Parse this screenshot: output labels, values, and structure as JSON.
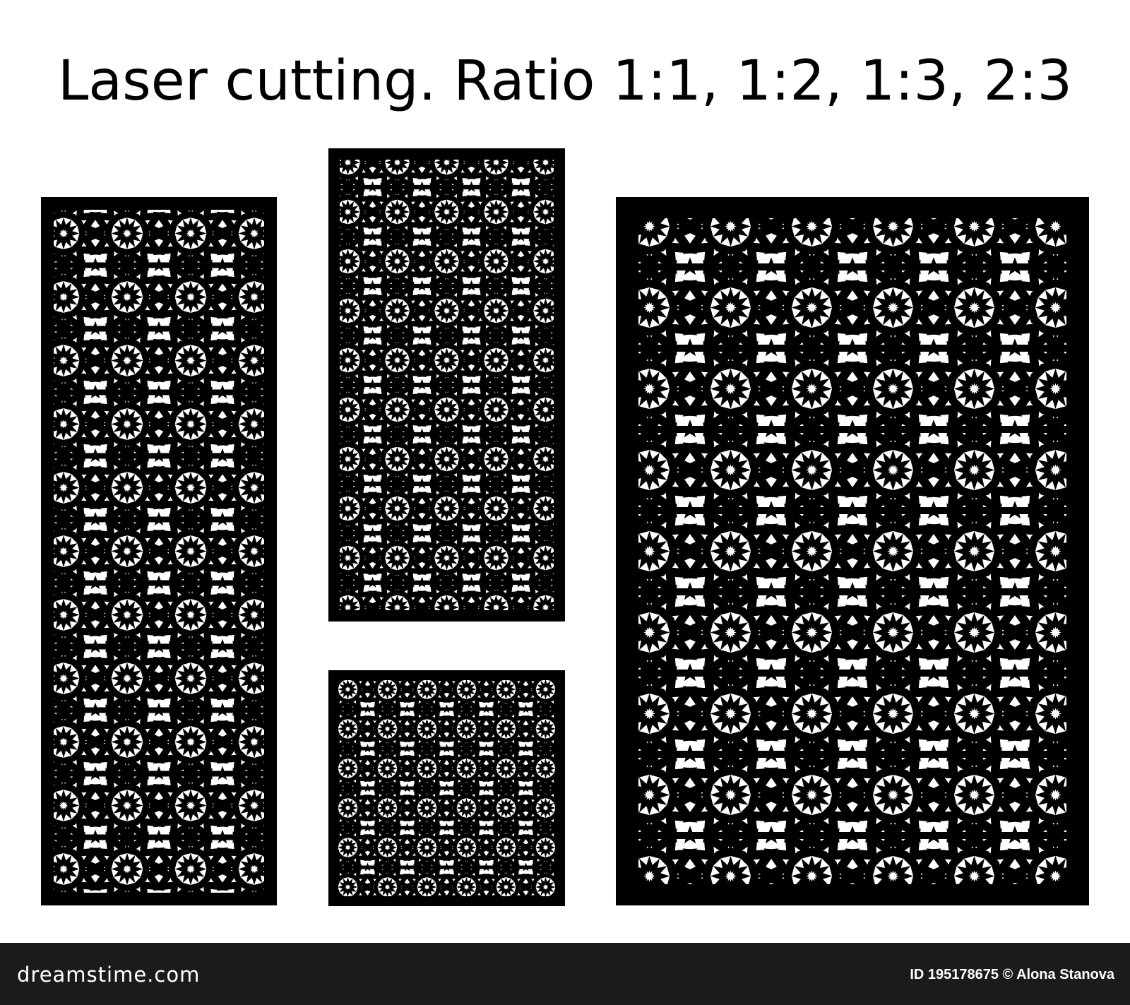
{
  "title": "Laser cutting.  Ratio 1:1, 1:2, 1:3, 2:3",
  "panels": [
    {
      "name": "panel-1-3",
      "ratio": "1:3"
    },
    {
      "name": "panel-1-2",
      "ratio": "1:2"
    },
    {
      "name": "panel-1-1",
      "ratio": "1:1"
    },
    {
      "name": "panel-2-3",
      "ratio": "2:3"
    }
  ],
  "footer": {
    "logo": "dreamstime.com",
    "credit": "ID 195178675 © Alona Stanova"
  },
  "colors": {
    "panel": "#000000",
    "cutout": "#ffffff",
    "footer_bg": "#1b1b1b",
    "footer_text": "#ffffff"
  }
}
